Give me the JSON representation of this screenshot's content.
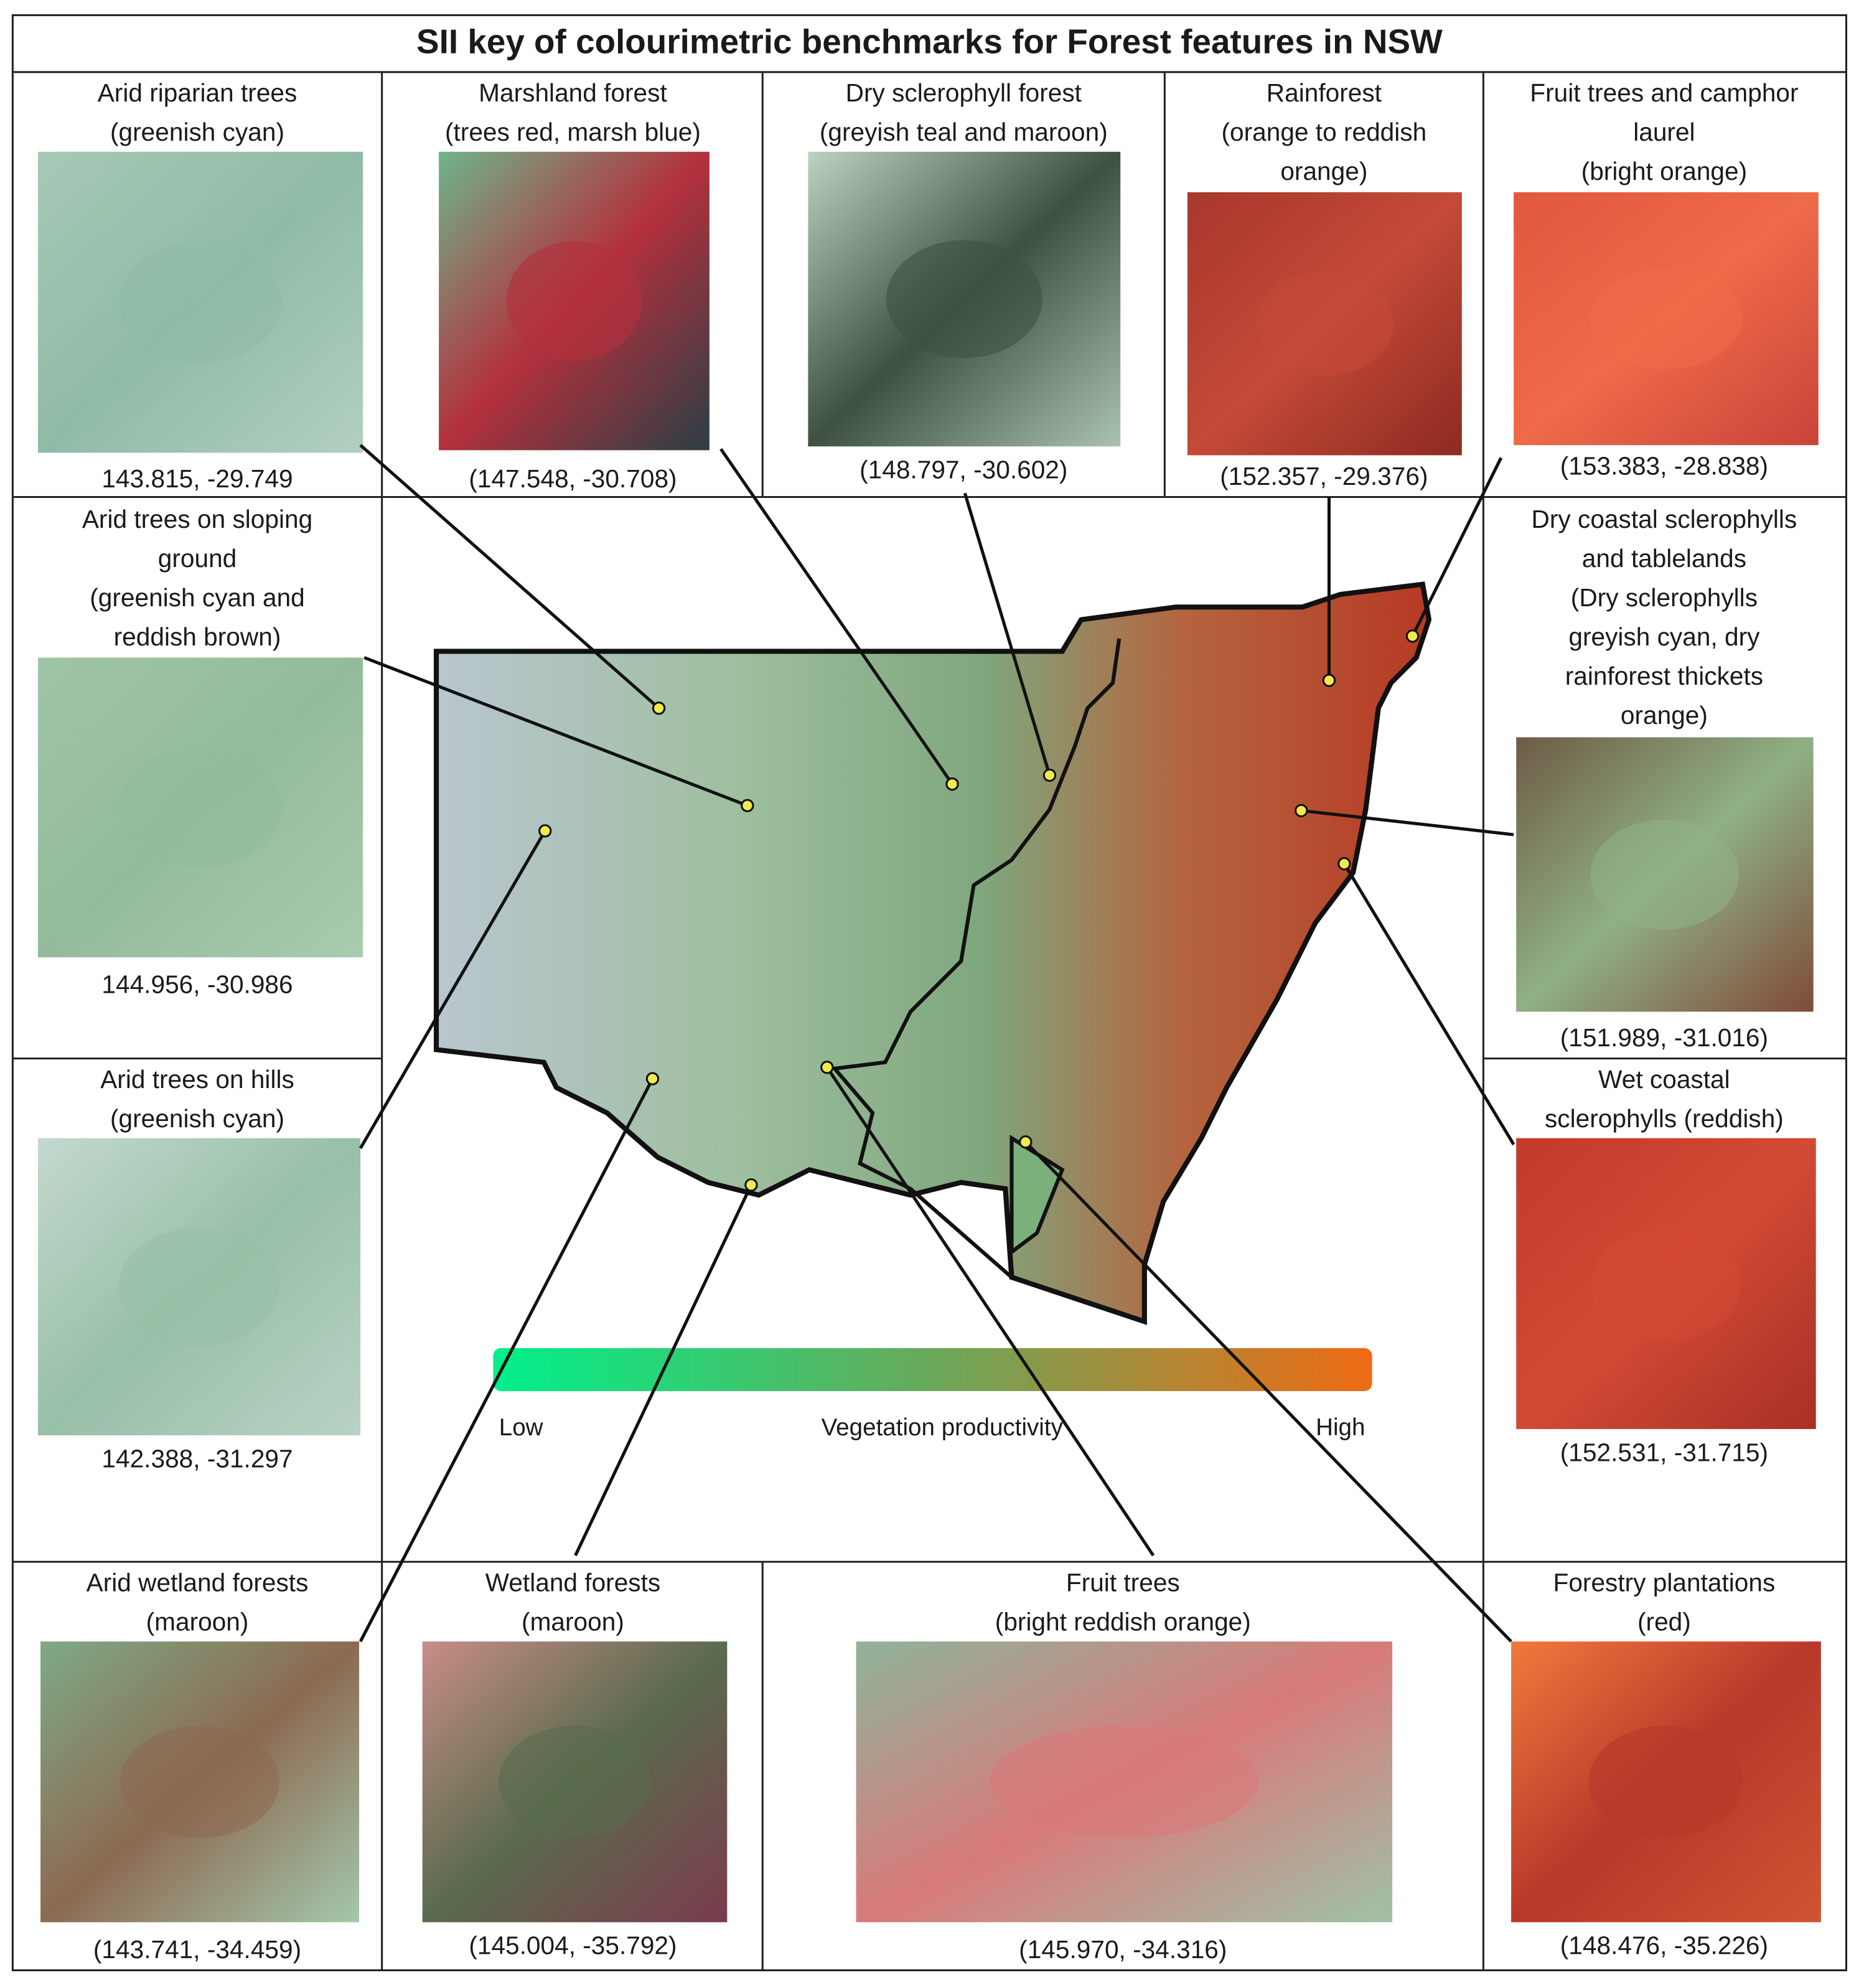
{
  "title": "SII key of colourimetric benchmarks for Forest features in NSW",
  "panels": [
    {
      "lines": [
        "Arid riparian trees",
        "(greenish cyan)"
      ],
      "coords": "143.815,  -29.749"
    },
    {
      "lines": [
        "Marshland forest",
        "(trees red, marsh blue)"
      ],
      "coords": "(147.548, -30.708)"
    },
    {
      "lines": [
        "Dry sclerophyll forest",
        "(greyish teal and maroon)"
      ],
      "coords": "(148.797, -30.602)"
    },
    {
      "lines": [
        "Rainforest",
        "(orange to reddish",
        "orange)"
      ],
      "coords": "(152.357, -29.376)"
    },
    {
      "lines": [
        "Fruit trees and camphor",
        "laurel",
        "(bright orange)"
      ],
      "coords": "(153.383, -28.838)"
    },
    {
      "lines": [
        "Arid trees on sloping",
        "ground",
        "(greenish cyan and",
        "reddish brown)"
      ],
      "coords": "144.956,  -30.986"
    },
    {
      "lines": [
        "Dry coastal sclerophylls",
        "and tablelands",
        "(Dry sclerophylls",
        "greyish cyan, dry",
        "rainforest thickets",
        "orange)"
      ],
      "coords": "(151.989, -31.016)"
    },
    {
      "lines": [
        "Arid trees on hills",
        "(greenish cyan)"
      ],
      "coords": "142.388,  -31.297"
    },
    {
      "lines": [
        "Wet coastal",
        "sclerophylls (reddish)"
      ],
      "coords": "(152.531, -31.715)"
    },
    {
      "lines": [
        "Arid wetland forests",
        "(maroon)"
      ],
      "coords": "(143.741, -34.459)"
    },
    {
      "lines": [
        "Wetland forests",
        "(maroon)"
      ],
      "coords": "(145.004, -35.792)"
    },
    {
      "lines": [
        "Fruit trees",
        "(bright reddish orange)"
      ],
      "coords": "(145.970, -34.316)"
    },
    {
      "lines": [
        "Forestry plantations",
        "(red)"
      ],
      "coords": "(148.476, -35.226)"
    }
  ],
  "legend": {
    "low": "Low",
    "label": "Vegetation productivity",
    "high": "High"
  }
}
